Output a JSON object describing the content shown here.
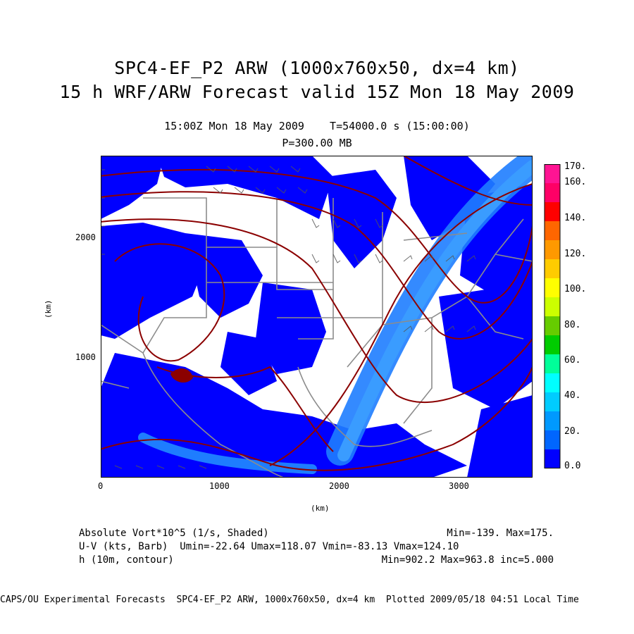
{
  "header": {
    "title_line1": "SPC4-EF_P2 ARW (1000x760x50, dx=4 km)",
    "title_line2": "15 h WRF/ARW Forecast valid 15Z Mon 18 May 2009",
    "time_line": "15:00Z Mon 18 May 2009    T=54000.0 s (15:00:00)",
    "level_line": "P=300.00 MB"
  },
  "axes": {
    "x_label": "(km)",
    "y_label": "(km)",
    "x_ticks": [
      "0",
      "1000",
      "2000",
      "3000"
    ],
    "y_ticks": [
      "1000",
      "2000"
    ]
  },
  "colorbar": {
    "labels": [
      "170.",
      "160.",
      "140.",
      "120.",
      "100.",
      "80.",
      "60.",
      "40.",
      "20.",
      "0.0"
    ],
    "colors": [
      "#ff1493",
      "#ff0066",
      "#ff0000",
      "#ff6600",
      "#ff9900",
      "#ffcc00",
      "#ffff00",
      "#ccff00",
      "#66cc00",
      "#00cc00",
      "#00ff99",
      "#00ffff",
      "#00ccff",
      "#0099ff",
      "#0066ff",
      "#0000ff"
    ]
  },
  "fields": {
    "line1_left": "Absolute Vort*10^5 (1/s, Shaded)",
    "line1_right": "Min=-139. Max=175.",
    "line2": "U-V (kts, Barb)  Umin=-22.64 Umax=118.07 Vmin=-83.13 Vmax=124.10",
    "line3_left": "h (10m, contour)",
    "line3_right": "Min=902.2 Max=963.8 inc=5.000"
  },
  "footer": {
    "text": "CAPS/OU Experimental Forecasts  SPC4-EF_P2 ARW, 1000x760x50, dx=4 km  Plotted 2009/05/18 04:51 Local Time"
  }
}
